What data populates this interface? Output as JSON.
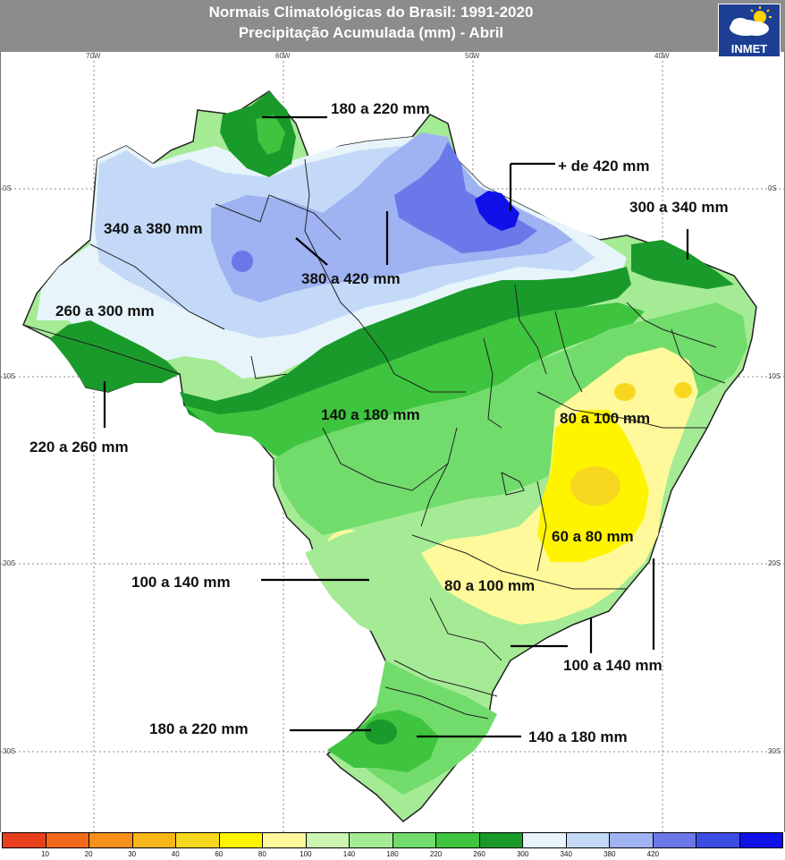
{
  "header": {
    "title_line1": "Normais Climatológicas do Brasil: 1991-2020",
    "title_line2": "Precipitação Acumulada (mm) - Abril",
    "logo_text": "INMET",
    "background": "#8c8c8c"
  },
  "axes": {
    "longitude_labels": [
      "70W",
      "60W",
      "50W",
      "40W"
    ],
    "latitude_labels": [
      "0S",
      "10S",
      "20S",
      "30S"
    ]
  },
  "labels": [
    "180 a 220 mm",
    "+ de 420 mm",
    "300 a 340 mm",
    "340 a 380 mm",
    "380 a 420 mm",
    "260 a 300 mm",
    "220 a 260 mm",
    "140 a 180 mm",
    "80 a 100 mm",
    "60 a 80 mm",
    "100 a 140 mm",
    "80 a 100 mm",
    "100 a 140 mm",
    "180 a 220 mm",
    "140 a 180 mm"
  ],
  "legend": {
    "colors": [
      "#e8401c",
      "#f2691b",
      "#f5901c",
      "#f7b519",
      "#f8d81f",
      "#fff400",
      "#fff99b",
      "#cdf5b2",
      "#a5eb95",
      "#71dc6b",
      "#3ec43e",
      "#1a9a2a",
      "#e7f5fb",
      "#c3d9f7",
      "#9fb2f2",
      "#6a78ea",
      "#3c4de3",
      "#1010e8"
    ],
    "ticks": [
      "10",
      "20",
      "30",
      "40",
      "60",
      "80",
      "100",
      "140",
      "180",
      "220",
      "260",
      "300",
      "340",
      "380",
      "420"
    ]
  }
}
